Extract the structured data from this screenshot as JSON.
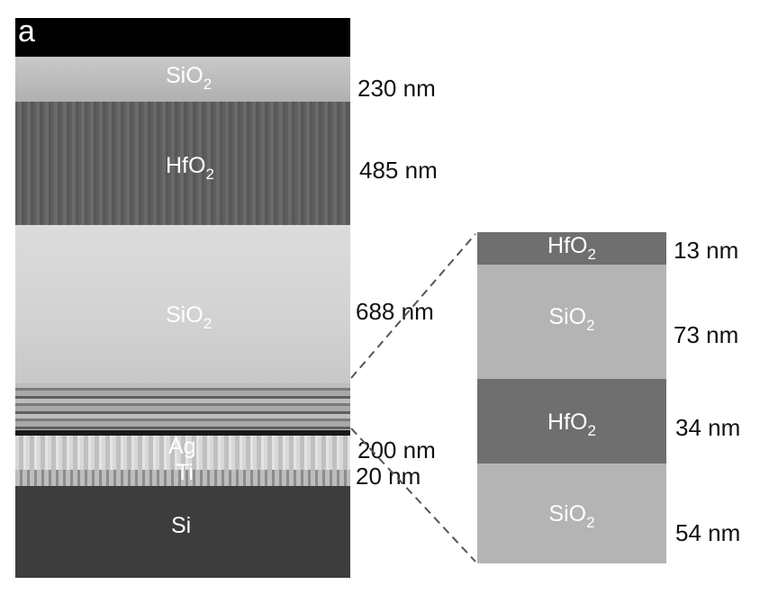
{
  "panel_letter": "a",
  "left_stack": {
    "layers": {
      "sio2_top": {
        "base": "SiO",
        "sub": "2"
      },
      "hfo2": {
        "base": "HfO",
        "sub": "2"
      },
      "sio2_mid": {
        "base": "SiO",
        "sub": "2"
      },
      "ag": "Ag",
      "ti": "Ti",
      "si": "Si"
    },
    "thicknesses": {
      "sio2_top": "230 nm",
      "hfo2": "485 nm",
      "sio2_mid": "688 nm",
      "ag": "200 nm",
      "ti": "20 nm"
    }
  },
  "zoom_stack": {
    "layers": [
      {
        "base": "HfO",
        "sub": "2",
        "thickness": "13 nm",
        "color": "#6f6f6f"
      },
      {
        "base": "SiO",
        "sub": "2",
        "thickness": "73 nm",
        "color": "#b4b4b4"
      },
      {
        "base": "HfO",
        "sub": "2",
        "thickness": "34 nm",
        "color": "#6f6f6f"
      },
      {
        "base": "SiO",
        "sub": "2",
        "thickness": "54 nm",
        "color": "#b4b4b4"
      }
    ]
  }
}
